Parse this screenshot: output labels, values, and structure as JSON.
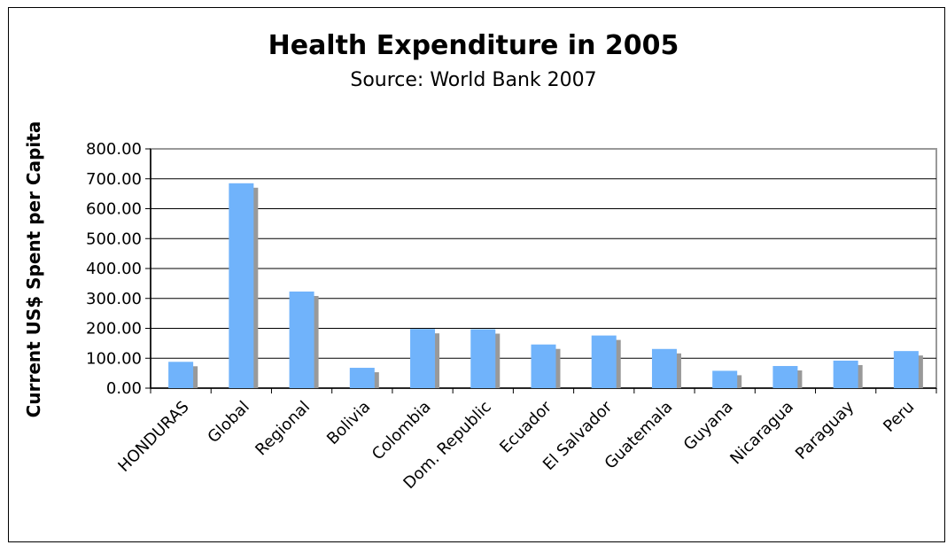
{
  "chart_data": {
    "type": "bar",
    "title": "Health Expenditure in 2005",
    "subtitle": "Source: World Bank 2007",
    "xlabel": "",
    "ylabel": "Current US$ Spent per Capita",
    "categories": [
      "HONDURAS",
      "Global",
      "Regional",
      "Bolivia",
      "Colombia",
      "Dom. Republic",
      "Ecuador",
      "El Salvador",
      "Guatemala",
      "Guyana",
      "Nicaragua",
      "Paraguay",
      "Peru"
    ],
    "values": [
      88,
      685,
      323,
      68,
      198,
      197,
      146,
      176,
      131,
      58,
      74,
      92,
      124
    ],
    "ylim": [
      0,
      800
    ],
    "yticks": [
      "0.00",
      "100.00",
      "200.00",
      "300.00",
      "400.00",
      "500.00",
      "600.00",
      "700.00",
      "800.00"
    ],
    "grid": true,
    "legend": "none",
    "colors": {
      "bar": "#70b3fb",
      "shadow": "#999999",
      "grid": "#000000",
      "frame": "#999999"
    }
  }
}
